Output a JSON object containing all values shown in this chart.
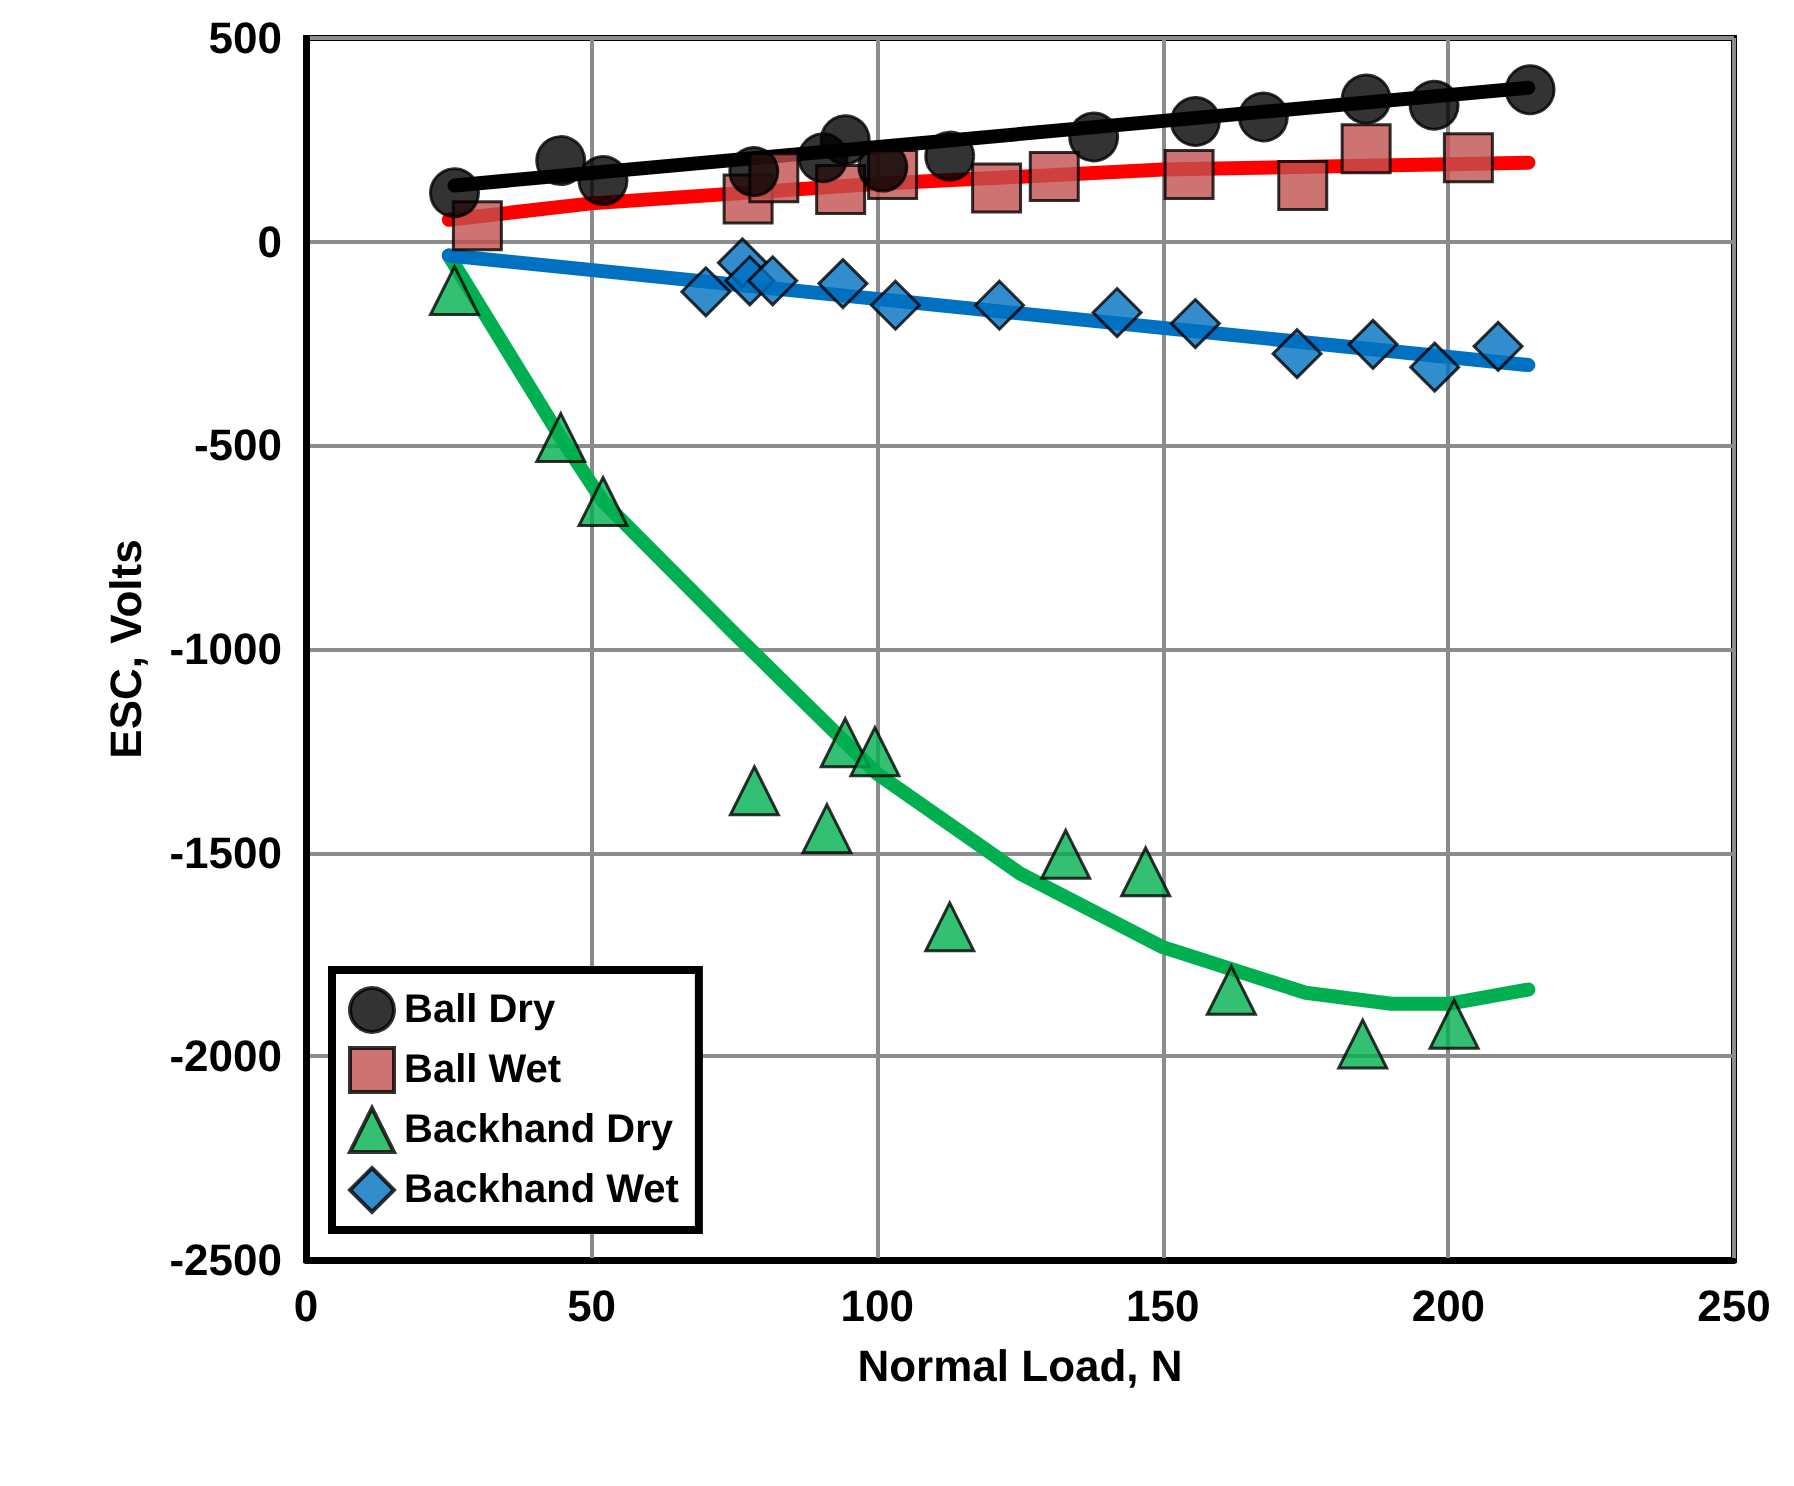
{
  "chart_data": {
    "type": "scatter",
    "xlabel": "Normal Load, N",
    "ylabel": "ESC, Volts",
    "xlim": [
      0,
      250
    ],
    "xticks": [
      0,
      50,
      100,
      150,
      200,
      250
    ],
    "ylim": [
      -2500,
      500
    ],
    "yticks": [
      -2500,
      -2000,
      -1500,
      -1000,
      -500,
      0,
      500
    ],
    "grid": true,
    "legend": "bottom left",
    "series": [
      {
        "name": "Ball Dry",
        "marker": "circle",
        "color": "#000000",
        "x": [
          26,
          44.6,
          52,
          78.4,
          90.5,
          94.4,
          101,
          112.7,
          137.9,
          155.7,
          167.6,
          185.6,
          197.5,
          214.3
        ],
        "values": [
          120,
          199,
          150,
          172,
          206,
          250,
          183,
          210,
          257,
          295,
          306,
          350,
          335,
          373
        ]
      },
      {
        "name": "Ball Wet",
        "marker": "square",
        "color": "#c0504d",
        "x": [
          30,
          77.4,
          81.9,
          93.6,
          102.7,
          120.9,
          131,
          154.6,
          174.5,
          185.6,
          203.5
        ],
        "values": [
          39,
          105,
          157,
          128,
          165,
          132,
          160,
          165,
          138,
          228,
          206
        ]
      },
      {
        "name": "Backhand Dry",
        "marker": "triangle",
        "color": "#00b050",
        "x": [
          26,
          44.6,
          52,
          78.5,
          91.2,
          94.4,
          99.6,
          112.7,
          133,
          147,
          162,
          185,
          201
        ],
        "values": [
          -120,
          -481,
          -638,
          -1348,
          -1441,
          -1230,
          -1252,
          -1682,
          -1504,
          -1547,
          -1838,
          -1970,
          -1921
        ]
      },
      {
        "name": "Backhand Wet",
        "marker": "diamond",
        "color": "#0070c0",
        "x": [
          70,
          76.4,
          77.7,
          81.7,
          94,
          103.2,
          121.4,
          142,
          155.7,
          173.5,
          186.8,
          197.6,
          208.7
        ],
        "values": [
          -123,
          -52,
          -96,
          -96,
          -103,
          -156,
          -156,
          -174,
          -201,
          -275,
          -252,
          -308,
          -257
        ]
      },
      {
        "type": "line",
        "marker": "none",
        "color": "#000000",
        "x": [
          26,
          214
        ],
        "values": [
          138,
          378
        ]
      },
      {
        "type": "line",
        "marker": "none",
        "color": "#ff0000",
        "x": [
          25,
          50,
          100,
          150,
          200,
          214
        ],
        "values": [
          54,
          94,
          142,
          177,
          190,
          194
        ]
      },
      {
        "type": "line",
        "marker": "none",
        "color": "#00b050",
        "x": [
          25,
          44.6,
          52,
          75,
          100,
          125,
          150,
          175,
          190,
          200,
          214
        ],
        "values": [
          -34,
          -481,
          -638,
          -962,
          -1306,
          -1551,
          -1732,
          -1844,
          -1871,
          -1871,
          -1836
        ]
      },
      {
        "type": "line",
        "marker": "none",
        "color": "#0070c0",
        "x": [
          25,
          214
        ],
        "values": [
          -34,
          -303
        ]
      }
    ]
  }
}
